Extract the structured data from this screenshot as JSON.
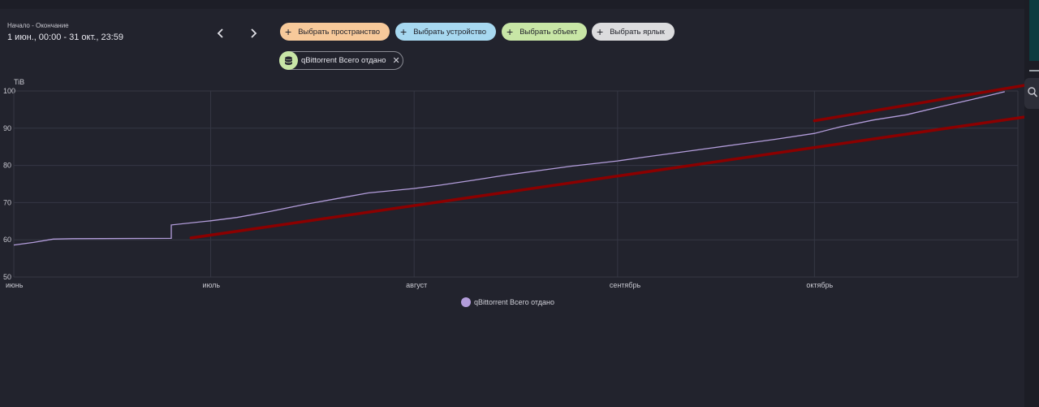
{
  "date_range": {
    "label": "Начало - Окончание",
    "value": "1 июн., 00:00 - 31 окт., 23:59"
  },
  "filters": [
    {
      "label": "Выбрать пространство",
      "color": "#f7c99a"
    },
    {
      "label": "Выбрать устройство",
      "color": "#a7d8f0"
    },
    {
      "label": "Выбрать объект",
      "color": "#c8e6a6"
    },
    {
      "label": "Выбрать ярлык",
      "color": "#dcdcde"
    }
  ],
  "selected_entity": {
    "label": "qBittorrent Всего отдано",
    "icon": "database-icon"
  },
  "chart_data": {
    "type": "line",
    "ylabel": "TiB",
    "ylim": [
      50,
      100
    ],
    "yticks": [
      50,
      60,
      70,
      80,
      90,
      100
    ],
    "xlim": [
      "2023-06-01",
      "2023-11-01"
    ],
    "xticks": [
      {
        "date": "2023-06-01",
        "label": "июнь"
      },
      {
        "date": "2023-07-01",
        "label": "июль"
      },
      {
        "date": "2023-08-01",
        "label": "август"
      },
      {
        "date": "2023-09-01",
        "label": "сентябрь"
      },
      {
        "date": "2023-10-01",
        "label": "октябрь"
      }
    ],
    "grid": true,
    "legend_position": "bottom-center",
    "series": [
      {
        "name": "qBittorrent Всего отдано",
        "color": "#b39ddb",
        "points": [
          [
            "2023-06-01",
            58.6
          ],
          [
            "2023-06-04",
            59.3
          ],
          [
            "2023-06-07",
            60.2
          ],
          [
            "2023-06-10",
            60.3
          ],
          [
            "2023-06-25",
            60.4
          ],
          [
            "2023-06-25",
            64.0
          ],
          [
            "2023-07-01",
            65.1
          ],
          [
            "2023-07-05",
            66.0
          ],
          [
            "2023-07-10",
            67.6
          ],
          [
            "2023-07-15",
            69.4
          ],
          [
            "2023-07-20",
            71.0
          ],
          [
            "2023-07-25",
            72.6
          ],
          [
            "2023-08-01",
            73.8
          ],
          [
            "2023-08-05",
            74.7
          ],
          [
            "2023-08-10",
            76.0
          ],
          [
            "2023-08-15",
            77.4
          ],
          [
            "2023-08-20",
            78.6
          ],
          [
            "2023-08-25",
            79.8
          ],
          [
            "2023-09-01",
            81.2
          ],
          [
            "2023-09-05",
            82.2
          ],
          [
            "2023-09-10",
            83.4
          ],
          [
            "2023-09-15",
            84.6
          ],
          [
            "2023-09-20",
            85.8
          ],
          [
            "2023-09-25",
            87.0
          ],
          [
            "2023-10-01",
            88.6
          ],
          [
            "2023-10-05",
            90.4
          ],
          [
            "2023-10-10",
            92.2
          ],
          [
            "2023-10-15",
            93.6
          ],
          [
            "2023-10-20",
            95.7
          ],
          [
            "2023-10-25",
            97.7
          ],
          [
            "2023-10-30",
            99.8
          ]
        ]
      }
    ],
    "annotations": [
      {
        "type": "line",
        "color": "#8b0000",
        "from": [
          "2023-06-28",
          60.5
        ],
        "to": [
          "2023-11-02",
          93.0
        ]
      },
      {
        "type": "line",
        "color": "#8b0000",
        "from": [
          "2023-10-01",
          92.0
        ],
        "to": [
          "2023-11-02",
          101.5
        ]
      }
    ]
  }
}
